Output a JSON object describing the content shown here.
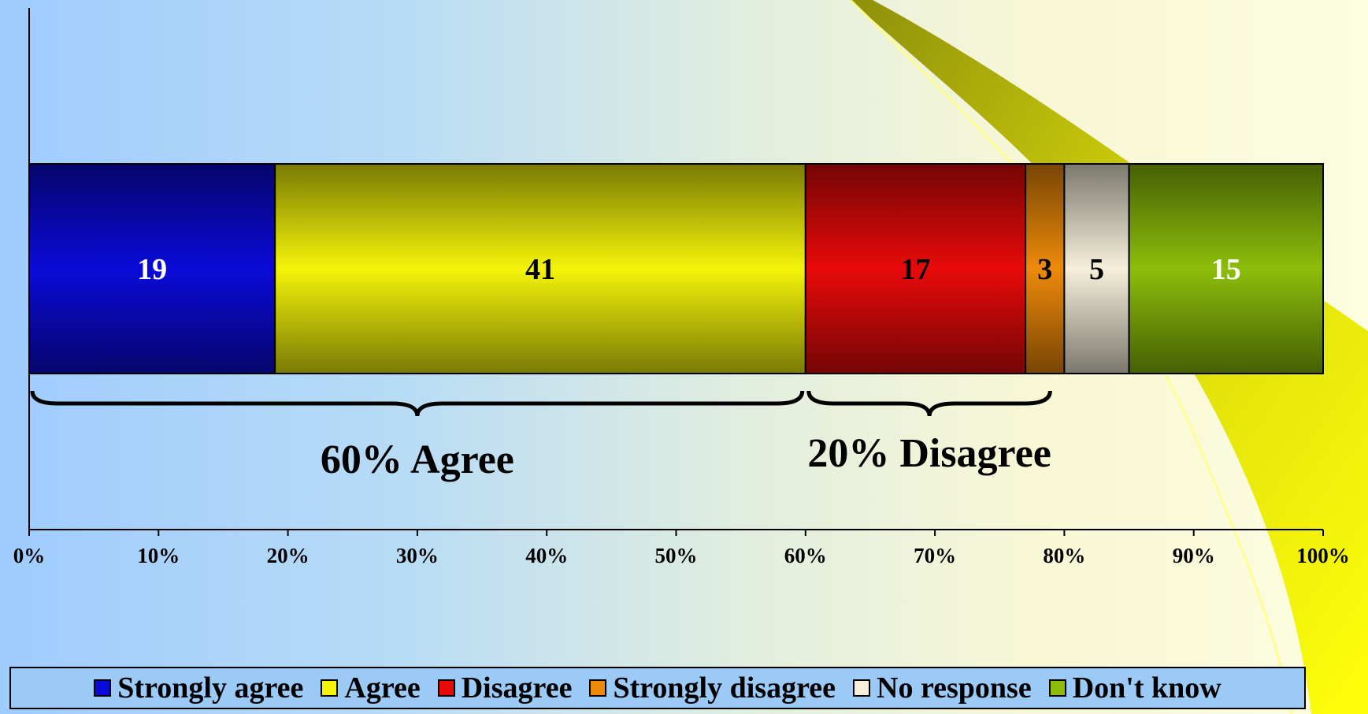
{
  "chart_data": {
    "type": "bar",
    "orientation": "horizontal-stacked-100",
    "title": "",
    "xlabel": "",
    "ylabel": "",
    "xlim": [
      0,
      100
    ],
    "x_ticks": [
      "0%",
      "10%",
      "20%",
      "30%",
      "40%",
      "50%",
      "60%",
      "70%",
      "80%",
      "90%",
      "100%"
    ],
    "grid": false,
    "legend_position": "bottom",
    "series": [
      {
        "name": "Strongly agree",
        "values": [
          19
        ],
        "label": "19",
        "color": "#0a0ad8",
        "label_color": "#ffffff"
      },
      {
        "name": "Agree",
        "values": [
          41
        ],
        "label": "41",
        "color": "#f4f40a",
        "label_color": "#000000"
      },
      {
        "name": "Disagree",
        "values": [
          17
        ],
        "label": "17",
        "color": "#e80a0a",
        "label_color": "#000000"
      },
      {
        "name": "Strongly disagree",
        "values": [
          3
        ],
        "label": "3",
        "color": "#ee8a0a",
        "label_color": "#000000"
      },
      {
        "name": "No response",
        "values": [
          5
        ],
        "label": "5",
        "color": "#f6f0da",
        "label_color": "#000000"
      },
      {
        "name": "Don't know",
        "values": [
          15
        ],
        "label": "15",
        "color": "#8cbe0a",
        "label_color": "#ffffff"
      }
    ],
    "annotations": [
      {
        "text": "60% Agree",
        "from": 0,
        "to": 60
      },
      {
        "text": "20% Disagree",
        "from": 60,
        "to": 80
      }
    ]
  }
}
